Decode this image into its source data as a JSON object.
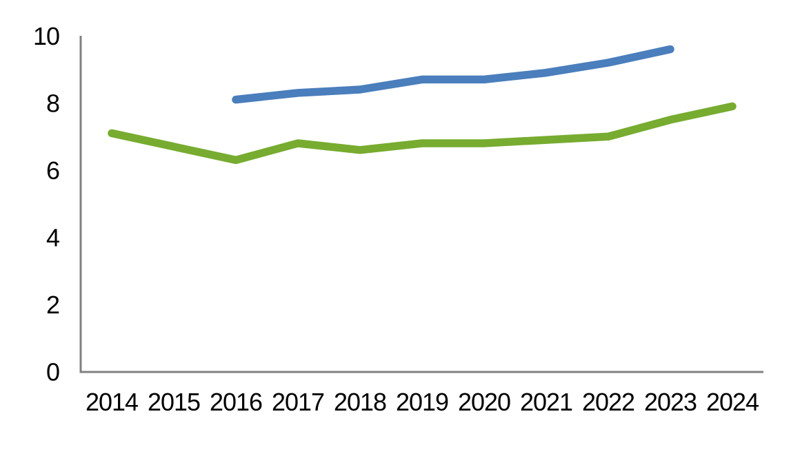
{
  "page": {
    "background_color": "#ffffff"
  },
  "chart_data": {
    "type": "line",
    "title": "",
    "subtitle": "",
    "xlabel": "",
    "ylabel": "",
    "categories": [
      "2014",
      "2015",
      "2016",
      "2017",
      "2018",
      "2019",
      "2020",
      "2021",
      "2022",
      "2023",
      "2024"
    ],
    "y_ticks": [
      "0",
      "2",
      "4",
      "6",
      "8",
      "10"
    ],
    "ylim": [
      0,
      10
    ],
    "grid": false,
    "legend": "none",
    "axis_color": "#808080",
    "tick_label_color": "#000000",
    "series": [
      {
        "name": "blue-line",
        "color": "#4A7EBC",
        "start_index": 2,
        "start_category": "2016",
        "end_category": "2023",
        "values": [
          8.1,
          8.3,
          8.4,
          8.7,
          8.7,
          8.9,
          9.2,
          9.6
        ]
      },
      {
        "name": "green-line",
        "color": "#77AC30",
        "start_index": 0,
        "start_category": "2014",
        "end_category": "2024",
        "values": [
          7.1,
          6.7,
          6.3,
          6.8,
          6.6,
          6.8,
          6.8,
          6.9,
          7.0,
          7.5,
          7.9
        ]
      }
    ]
  }
}
